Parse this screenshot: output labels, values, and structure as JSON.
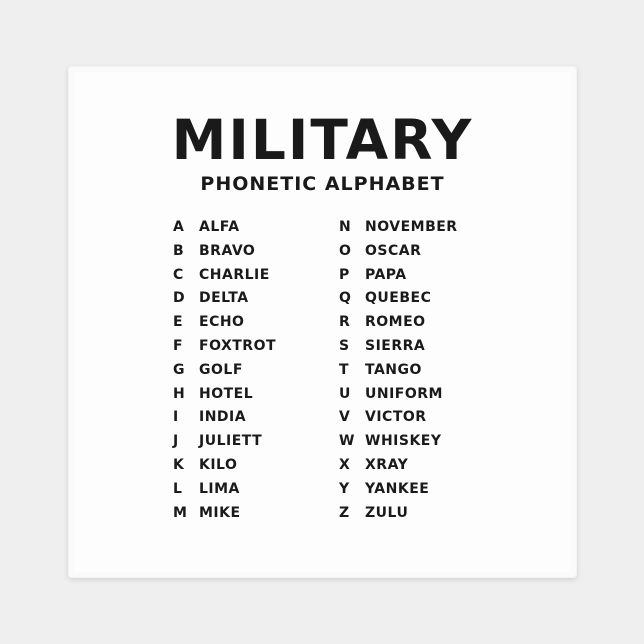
{
  "title": "MILITARY",
  "subtitle": "PHONETIC ALPHABET",
  "left": [
    {
      "letter": "A",
      "word": "ALFA"
    },
    {
      "letter": "B",
      "word": "BRAVO"
    },
    {
      "letter": "C",
      "word": "CHARLIE"
    },
    {
      "letter": "D",
      "word": "DELTA"
    },
    {
      "letter": "E",
      "word": "ECHO"
    },
    {
      "letter": "F",
      "word": "FOXTROT"
    },
    {
      "letter": "G",
      "word": "GOLF"
    },
    {
      "letter": "H",
      "word": "HOTEL"
    },
    {
      "letter": "I",
      "word": "INDIA"
    },
    {
      "letter": "J",
      "word": "JULIETT"
    },
    {
      "letter": "K",
      "word": "KILO"
    },
    {
      "letter": "L",
      "word": "LIMA"
    },
    {
      "letter": "M",
      "word": "MIKE"
    }
  ],
  "right": [
    {
      "letter": "N",
      "word": "NOVEMBER"
    },
    {
      "letter": "O",
      "word": "OSCAR"
    },
    {
      "letter": "P",
      "word": "PAPA"
    },
    {
      "letter": "Q",
      "word": "QUEBEC"
    },
    {
      "letter": "R",
      "word": "ROMEO"
    },
    {
      "letter": "S",
      "word": "SIERRA"
    },
    {
      "letter": "T",
      "word": "TANGO"
    },
    {
      "letter": "U",
      "word": "UNIFORM"
    },
    {
      "letter": "V",
      "word": "VICTOR"
    },
    {
      "letter": "W",
      "word": "WHISKEY"
    },
    {
      "letter": "X",
      "word": "XRAY"
    },
    {
      "letter": "Y",
      "word": "YANKEE"
    },
    {
      "letter": "Z",
      "word": "ZULU"
    }
  ]
}
